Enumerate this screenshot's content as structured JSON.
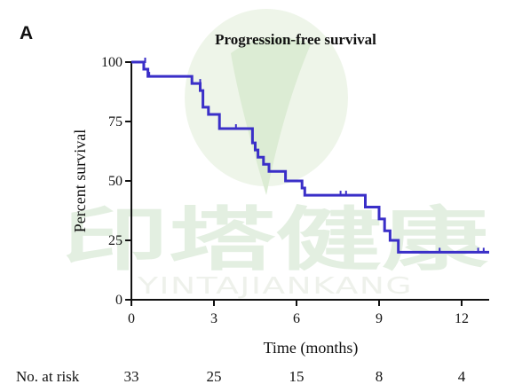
{
  "panel_letter": "A",
  "watermark": {
    "chinese_text": "印塔健康",
    "latin_text": "YINTAJIANKANG"
  },
  "colors": {
    "curve": "#3a2fc8",
    "axis": "#111111",
    "watermark_green": "#e3efe1"
  },
  "chart_data": {
    "type": "line",
    "title": "Progression-free survival",
    "xlabel": "Time (months)",
    "ylabel": "Percent survival",
    "xlim": [
      0,
      13
    ],
    "ylim": [
      0,
      100
    ],
    "xticks": [
      0,
      3,
      6,
      9,
      12
    ],
    "yticks": [
      0,
      25,
      50,
      75,
      100
    ],
    "grid": false,
    "series": [
      {
        "steps": [
          [
            0,
            100
          ],
          [
            0.45,
            97
          ],
          [
            0.6,
            94
          ],
          [
            2.2,
            91
          ],
          [
            2.5,
            88
          ],
          [
            2.6,
            81
          ],
          [
            2.8,
            78
          ],
          [
            3.2,
            72
          ],
          [
            4.4,
            66
          ],
          [
            4.5,
            63
          ],
          [
            4.6,
            60
          ],
          [
            4.8,
            57
          ],
          [
            5.0,
            54
          ],
          [
            5.6,
            50
          ],
          [
            6.2,
            47
          ],
          [
            6.3,
            44
          ],
          [
            7.6,
            44
          ],
          [
            8.5,
            39
          ],
          [
            9.0,
            34
          ],
          [
            9.2,
            29
          ],
          [
            9.4,
            25
          ],
          [
            9.7,
            20
          ],
          [
            13.0,
            20
          ]
        ],
        "censored": [
          [
            0.5,
            100
          ],
          [
            0.65,
            94
          ],
          [
            2.5,
            91
          ],
          [
            3.8,
            72
          ],
          [
            4.5,
            63
          ],
          [
            4.6,
            60
          ],
          [
            7.6,
            44
          ],
          [
            7.8,
            44
          ],
          [
            11.2,
            20
          ],
          [
            12.6,
            20
          ],
          [
            12.8,
            20
          ]
        ]
      }
    ],
    "risk_table": {
      "label": "No. at risk",
      "counts": [
        "33",
        "25",
        "15",
        "8",
        "4"
      ]
    }
  }
}
